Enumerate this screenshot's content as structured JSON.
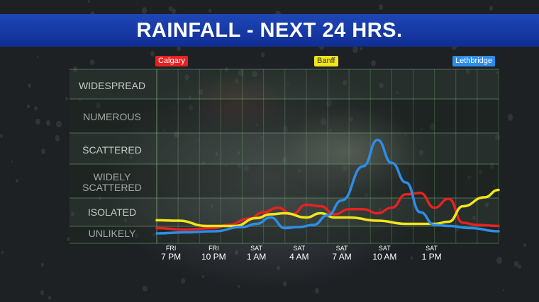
{
  "title": "RAINFALL - NEXT 24 HRS.",
  "chart_data": {
    "type": "line",
    "title": "RAINFALL - NEXT 24 HRS.",
    "y_categories": [
      "UNLIKELY",
      "ISOLATED",
      "WIDELY SCATTERED",
      "SCATTERED",
      "NUMEROUS",
      "WIDESPREAD"
    ],
    "y_category_lines": [
      [
        "UNLIKELY"
      ],
      [
        "ISOLATED"
      ],
      [
        "WIDELY",
        "SCATTERED"
      ],
      [
        "SCATTERED"
      ],
      [
        "NUMEROUS"
      ],
      [
        "WIDESPREAD"
      ]
    ],
    "ylim": [
      0,
      6
    ],
    "xlim": [
      0,
      24
    ],
    "x_ticks": [
      {
        "x": 1,
        "day": "FRI",
        "time": "7 PM"
      },
      {
        "x": 4,
        "day": "FRI",
        "time": "10 PM"
      },
      {
        "x": 7,
        "day": "SAT",
        "time": "1 AM"
      },
      {
        "x": 10,
        "day": "SAT",
        "time": "4 AM"
      },
      {
        "x": 13,
        "day": "SAT",
        "time": "7 AM"
      },
      {
        "x": 16,
        "day": "SAT",
        "time": "10 AM"
      },
      {
        "x": 19.3,
        "day": "SAT",
        "time": "1 PM"
      }
    ],
    "series": [
      {
        "name": "Calgary",
        "color": "#e52222",
        "tag_text_color": "#ffffff",
        "points": [
          [
            0,
            0.25
          ],
          [
            2,
            0.18
          ],
          [
            4,
            0.25
          ],
          [
            5,
            0.4
          ],
          [
            6.5,
            0.7
          ],
          [
            7.5,
            1.0
          ],
          [
            8.5,
            1.15
          ],
          [
            9.5,
            0.9
          ],
          [
            10.5,
            1.25
          ],
          [
            11.5,
            1.2
          ],
          [
            12.5,
            0.9
          ],
          [
            13.5,
            1.1
          ],
          [
            14.5,
            1.1
          ],
          [
            15.5,
            0.95
          ],
          [
            16.5,
            1.15
          ],
          [
            17.5,
            1.6
          ],
          [
            18.5,
            1.65
          ],
          [
            19.5,
            1.15
          ],
          [
            20.5,
            1.45
          ],
          [
            21.5,
            0.5
          ],
          [
            22.5,
            0.4
          ],
          [
            24,
            0.35
          ]
        ]
      },
      {
        "name": "Banff",
        "color": "#f2e51a",
        "tag_text_color": "#333333",
        "points": [
          [
            0,
            0.62
          ],
          [
            1.5,
            0.6
          ],
          [
            3.5,
            0.35
          ],
          [
            5.5,
            0.35
          ],
          [
            7,
            0.72
          ],
          [
            8,
            0.9
          ],
          [
            9,
            0.95
          ],
          [
            10.5,
            0.75
          ],
          [
            11.5,
            0.95
          ],
          [
            12.5,
            0.75
          ],
          [
            13.5,
            0.75
          ],
          [
            15.5,
            0.6
          ],
          [
            17.5,
            0.45
          ],
          [
            19.5,
            0.45
          ],
          [
            20.5,
            0.55
          ],
          [
            21.5,
            1.2
          ],
          [
            23,
            1.5
          ],
          [
            24,
            1.75
          ]
        ]
      },
      {
        "name": "Lethbridge",
        "color": "#2d8de8",
        "tag_text_color": "#ffffff",
        "points": [
          [
            0,
            0
          ],
          [
            2,
            0.05
          ],
          [
            4,
            0.1
          ],
          [
            6,
            0.3
          ],
          [
            7,
            0.45
          ],
          [
            8,
            0.75
          ],
          [
            9,
            0.25
          ],
          [
            10,
            0.3
          ],
          [
            11,
            0.4
          ],
          [
            12,
            0.85
          ],
          [
            13,
            1.4
          ],
          [
            14.5,
            2.5
          ],
          [
            15.5,
            3.3
          ],
          [
            16.5,
            2.6
          ],
          [
            17.5,
            2.0
          ],
          [
            18.5,
            1.0
          ],
          [
            19.5,
            0.4
          ],
          [
            20.5,
            0.35
          ],
          [
            22,
            0.25
          ],
          [
            24,
            0.1
          ]
        ]
      }
    ],
    "grid": true,
    "legend_placement": "top"
  }
}
